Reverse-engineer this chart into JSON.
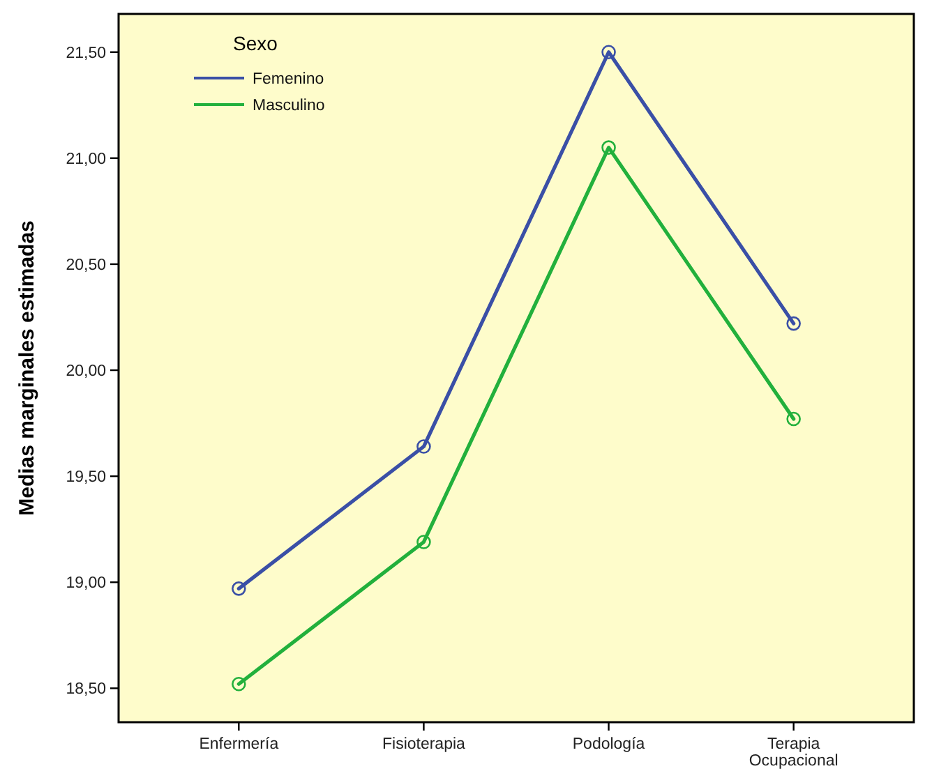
{
  "chart_data": {
    "type": "line",
    "ylabel": "Medias marginales estimadas",
    "legend_title": "Sexo",
    "legend": "top left",
    "marker": "circle",
    "grid": false,
    "categories": [
      "Enfermería",
      "Fisioterapia",
      "Podología",
      "Terapia Ocupacional"
    ],
    "ylim": [
      18.34,
      21.68
    ],
    "yticks": [
      {
        "value": 18.5,
        "label": "18,50"
      },
      {
        "value": 19,
        "label": "19,00"
      },
      {
        "value": 19.5,
        "label": "19,50"
      },
      {
        "value": 20,
        "label": "20,00"
      },
      {
        "value": 20.5,
        "label": "20,50"
      },
      {
        "value": 21,
        "label": "21,00"
      },
      {
        "value": 21.5,
        "label": "21,50"
      }
    ],
    "series": [
      {
        "name": "Femenino",
        "color": "#3a4fa6",
        "values": [
          18.97,
          19.64,
          21.5,
          20.22
        ]
      },
      {
        "name": "Masculino",
        "color": "#22b03c",
        "values": [
          18.52,
          19.19,
          21.05,
          19.77
        ]
      }
    ]
  }
}
